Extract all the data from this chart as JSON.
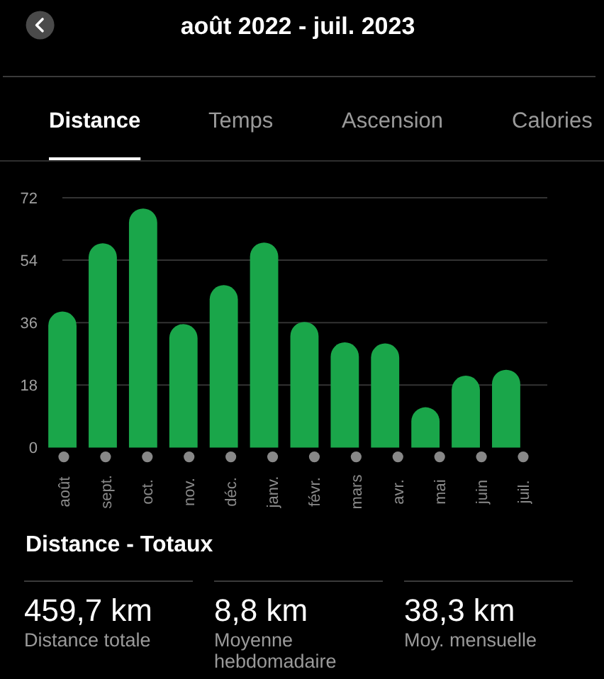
{
  "chart_data": {
    "type": "bar",
    "title": "août 2022 - juil. 2023",
    "categories": [
      "août",
      "sept.",
      "oct.",
      "nov.",
      "déc.",
      "janv.",
      "févr.",
      "mars",
      "avr.",
      "mai",
      "juin",
      "juil."
    ],
    "values": [
      39.2,
      58.9,
      68.9,
      35.6,
      46.8,
      59.1,
      36.2,
      30.3,
      30.0,
      11.6,
      20.7,
      22.4
    ],
    "color": "#1aa64a",
    "ylim": [
      0,
      72
    ],
    "yticks": [
      0,
      18,
      36,
      54,
      72
    ],
    "grid": true,
    "annotations": [
      "Distance",
      "Temps",
      "Ascension",
      "Calories",
      "Distance - Totaux",
      "459,7 km",
      "Distance totale",
      "8,8 km",
      "Moyenne hebdomadaire",
      "38,3 km",
      "Moy. mensuelle"
    ]
  }
}
